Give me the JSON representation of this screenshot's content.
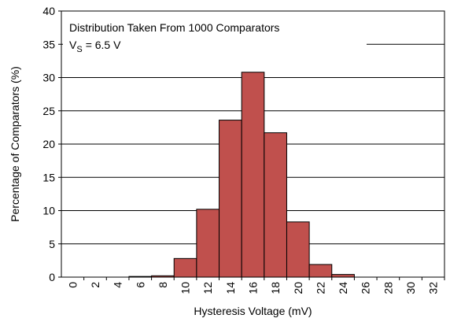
{
  "chart_data": {
    "type": "bar",
    "ylabel": "Percentage of Comparators (%)",
    "xlabel": "Hysteresis Voltage (mV)",
    "annotation": "Distribution Taken From 1000 Comparators",
    "condition": {
      "symbol": "V",
      "subscript": "S",
      "text": "= 6.5 V"
    },
    "categories": [
      "0",
      "2",
      "4",
      "6",
      "8",
      "10",
      "12",
      "14",
      "16",
      "18",
      "20",
      "22",
      "24",
      "26",
      "28",
      "30",
      "32"
    ],
    "values": [
      0,
      0,
      0,
      0.1,
      0.2,
      2.8,
      10.2,
      23.6,
      30.8,
      21.7,
      8.3,
      1.9,
      0.4,
      0,
      0,
      0,
      0
    ],
    "color": "#c0504d",
    "ylim": [
      0,
      40
    ],
    "yticks": [
      0,
      5,
      10,
      15,
      20,
      25,
      30,
      35,
      40
    ],
    "grid": true
  }
}
